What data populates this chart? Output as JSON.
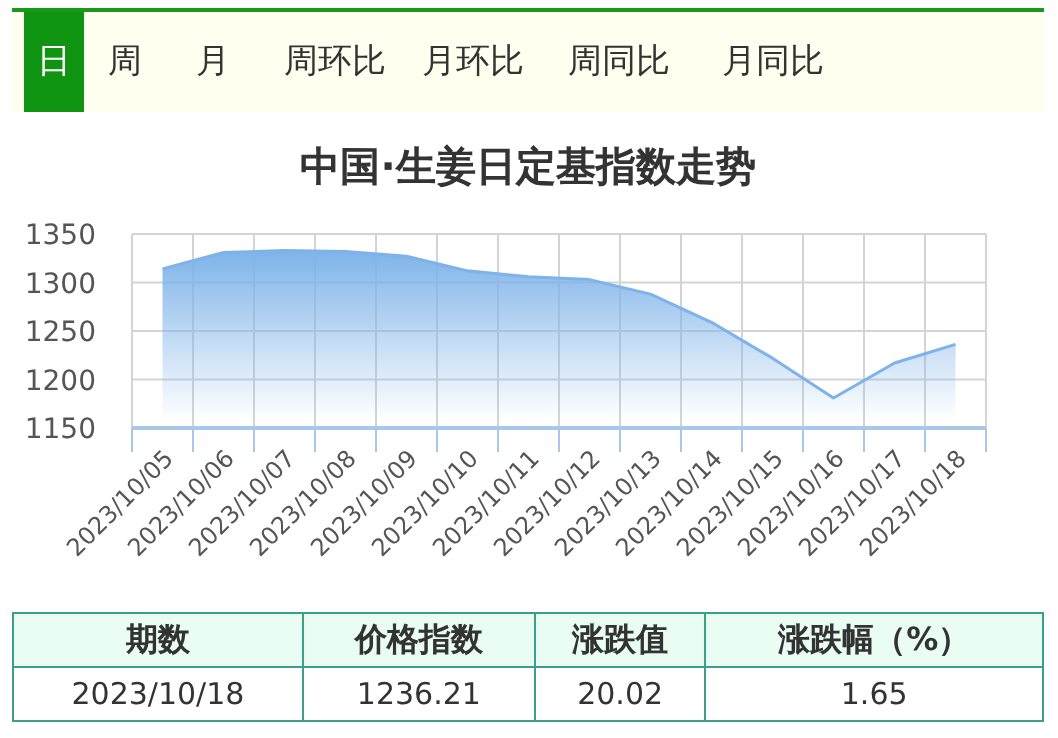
{
  "chart_data": {
    "type": "area",
    "title": "中国·生姜日定基指数走势",
    "categories": [
      "2023/10/05",
      "2023/10/06",
      "2023/10/07",
      "2023/10/08",
      "2023/10/09",
      "2023/10/10",
      "2023/10/11",
      "2023/10/12",
      "2023/10/13",
      "2023/10/14",
      "2023/10/15",
      "2023/10/16",
      "2023/10/17",
      "2023/10/18"
    ],
    "values": [
      1314,
      1331,
      1333,
      1332,
      1327,
      1312,
      1306,
      1303,
      1288,
      1259,
      1222,
      1181,
      1217,
      1236.21
    ],
    "color": "#7eb3e9",
    "ylim": [
      1150,
      1350
    ],
    "yticks": [
      1150,
      1200,
      1250,
      1300,
      1350
    ],
    "grid": true,
    "annotations": [
      "日",
      "周",
      "月",
      "周环比",
      "月环比",
      "周同比",
      "月同比",
      "期数",
      "价格指数",
      "涨跌值",
      "涨跌幅（%）",
      "2023/10/18",
      "1236.21",
      "20.02",
      "1.65"
    ]
  }
}
